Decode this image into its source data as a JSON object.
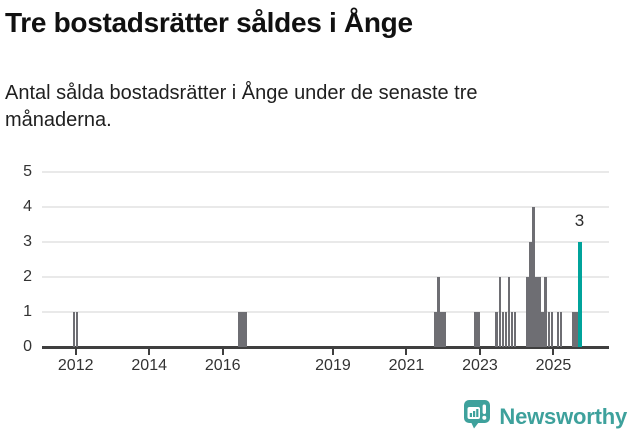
{
  "header": {
    "title": "Tre bostadsrätter såldes i Ånge",
    "subtitle_line1": "Antal sålda bostadsrätter i Ånge under de senaste tre",
    "subtitle_line2": "månaderna."
  },
  "chart_data": {
    "type": "bar",
    "title": "Tre bostadsrätter såldes i Ånge",
    "subtitle": "Antal sålda bostadsrätter i Ånge under de senaste tre månaderna.",
    "xlabel": "",
    "ylabel": "",
    "ylim": [
      0,
      5
    ],
    "grid": true,
    "legend_position": "none",
    "y_ticks": [
      0,
      1,
      2,
      3,
      4,
      5
    ],
    "x_tick_years": [
      2012,
      2014,
      2016,
      2019,
      2021,
      2023,
      2025
    ],
    "bar_color": "#6e6e73",
    "gridline_color": "#e9e9e9",
    "axis_color": "#3f3f3f",
    "monthly_sales": [
      {
        "month": "2011-12",
        "value": 1
      },
      {
        "month": "2012-01",
        "value": 1
      },
      {
        "month": "2016-06",
        "value": 1
      },
      {
        "month": "2016-07",
        "value": 1
      },
      {
        "month": "2016-08",
        "value": 1
      },
      {
        "month": "2021-10",
        "value": 1
      },
      {
        "month": "2021-11",
        "value": 2
      },
      {
        "month": "2021-12",
        "value": 1
      },
      {
        "month": "2022-01",
        "value": 1
      },
      {
        "month": "2022-11",
        "value": 1
      },
      {
        "month": "2022-12",
        "value": 1
      },
      {
        "month": "2023-06",
        "value": 1
      },
      {
        "month": "2023-07",
        "value": 2
      },
      {
        "month": "2023-08",
        "value": 1
      },
      {
        "month": "2023-09",
        "value": 1
      },
      {
        "month": "2023-10",
        "value": 2
      },
      {
        "month": "2023-11",
        "value": 1
      },
      {
        "month": "2023-12",
        "value": 1
      },
      {
        "month": "2024-04",
        "value": 2
      },
      {
        "month": "2024-05",
        "value": 3
      },
      {
        "month": "2024-06",
        "value": 4
      },
      {
        "month": "2024-07",
        "value": 2
      },
      {
        "month": "2024-08",
        "value": 2
      },
      {
        "month": "2024-09",
        "value": 1
      },
      {
        "month": "2024-10",
        "value": 2
      },
      {
        "month": "2024-11",
        "value": 1
      },
      {
        "month": "2024-12",
        "value": 1
      },
      {
        "month": "2025-02",
        "value": 1
      },
      {
        "month": "2025-03",
        "value": 1
      },
      {
        "month": "2025-07",
        "value": 1
      },
      {
        "month": "2025-08",
        "value": 1
      }
    ],
    "highlight": {
      "month": "2025-09",
      "value": 3,
      "label": "3",
      "color": "#00a39b"
    }
  },
  "footer": {
    "brand": "Newsworthy",
    "brand_color": "#3ea19c",
    "logo_icon": "newsworthy-bubble-chart-icon"
  }
}
